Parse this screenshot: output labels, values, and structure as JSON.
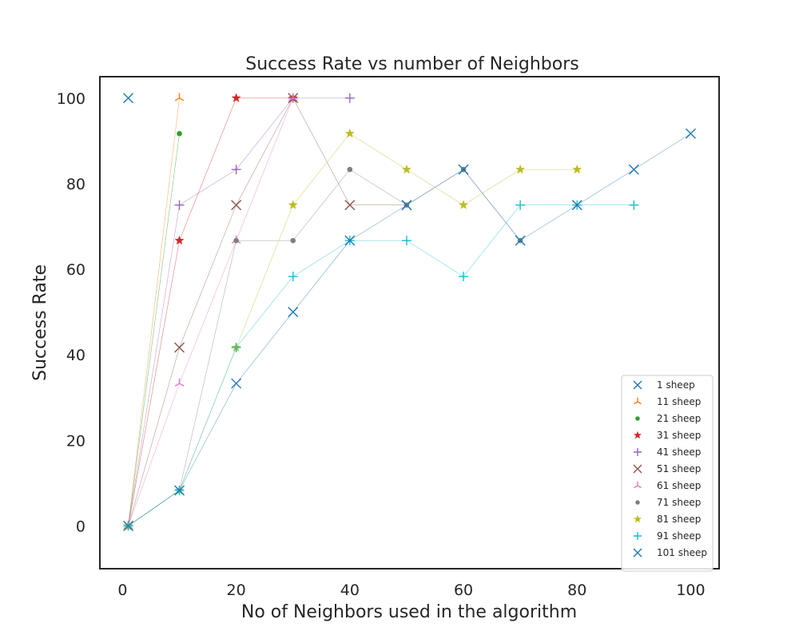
{
  "chart_data": {
    "type": "line",
    "title": "Success Rate vs number of Neighbors",
    "xlabel": "No of Neighbors used in the algorithm",
    "ylabel": "Success Rate",
    "xlim": [
      -4,
      105
    ],
    "ylim": [
      -10,
      105
    ],
    "xticks": [
      0,
      20,
      40,
      60,
      80,
      100
    ],
    "yticks": [
      0,
      20,
      40,
      60,
      80,
      100
    ],
    "grid": false,
    "legend_position": "lower-right",
    "series": [
      {
        "name": "1 sheep",
        "color": "#1f77b4",
        "marker": "x",
        "x": [
          1
        ],
        "y": [
          100
        ]
      },
      {
        "name": "11 sheep",
        "color": "#ff7f0e",
        "marker": "tri_up",
        "x": [
          1,
          10
        ],
        "y": [
          0,
          100
        ]
      },
      {
        "name": "21 sheep",
        "color": "#2ca02c",
        "marker": "dot",
        "x": [
          1,
          10
        ],
        "y": [
          0,
          91.7
        ]
      },
      {
        "name": "31 sheep",
        "color": "#d62728",
        "marker": "star",
        "x": [
          1,
          10,
          20,
          30
        ],
        "y": [
          0,
          66.7,
          100,
          100
        ]
      },
      {
        "name": "41 sheep",
        "color": "#9467bd",
        "marker": "plus",
        "x": [
          1,
          10,
          20,
          30,
          40
        ],
        "y": [
          0,
          75,
          83.3,
          100,
          100
        ]
      },
      {
        "name": "51 sheep",
        "color": "#8c564b",
        "marker": "x",
        "x": [
          1,
          10,
          20,
          30,
          40,
          50
        ],
        "y": [
          0,
          41.7,
          75,
          100,
          75,
          75
        ]
      },
      {
        "name": "61 sheep",
        "color": "#e377c2",
        "marker": "tri_up",
        "x": [
          1,
          10,
          20,
          30
        ],
        "y": [
          0,
          33.3,
          66.7,
          100
        ]
      },
      {
        "name": "71 sheep",
        "color": "#7f7f7f",
        "marker": "dot",
        "x": [
          1,
          10,
          20,
          30,
          40,
          50,
          60,
          70
        ],
        "y": [
          0,
          8.3,
          66.7,
          66.7,
          83.3,
          75,
          83.3,
          66.7
        ]
      },
      {
        "name": "81 sheep",
        "color": "#bcbd22",
        "marker": "star",
        "x": [
          1,
          10,
          20,
          30,
          40,
          50,
          60,
          70,
          80
        ],
        "y": [
          0,
          8.3,
          41.7,
          75,
          91.7,
          83.3,
          75,
          83.3,
          83.3
        ]
      },
      {
        "name": "91 sheep",
        "color": "#17becf",
        "marker": "plus",
        "x": [
          1,
          10,
          20,
          30,
          40,
          50,
          60,
          70,
          80,
          90
        ],
        "y": [
          0,
          8.3,
          41.7,
          58.3,
          66.7,
          66.7,
          58.3,
          75,
          75,
          75
        ]
      },
      {
        "name": "101 sheep",
        "color": "#1f77b4",
        "marker": "x",
        "x": [
          1,
          10,
          20,
          30,
          40,
          50,
          60,
          70,
          80,
          90,
          100
        ],
        "y": [
          0,
          8.3,
          33.3,
          50,
          66.7,
          75,
          83.3,
          66.7,
          75,
          83.3,
          91.7
        ]
      }
    ]
  }
}
